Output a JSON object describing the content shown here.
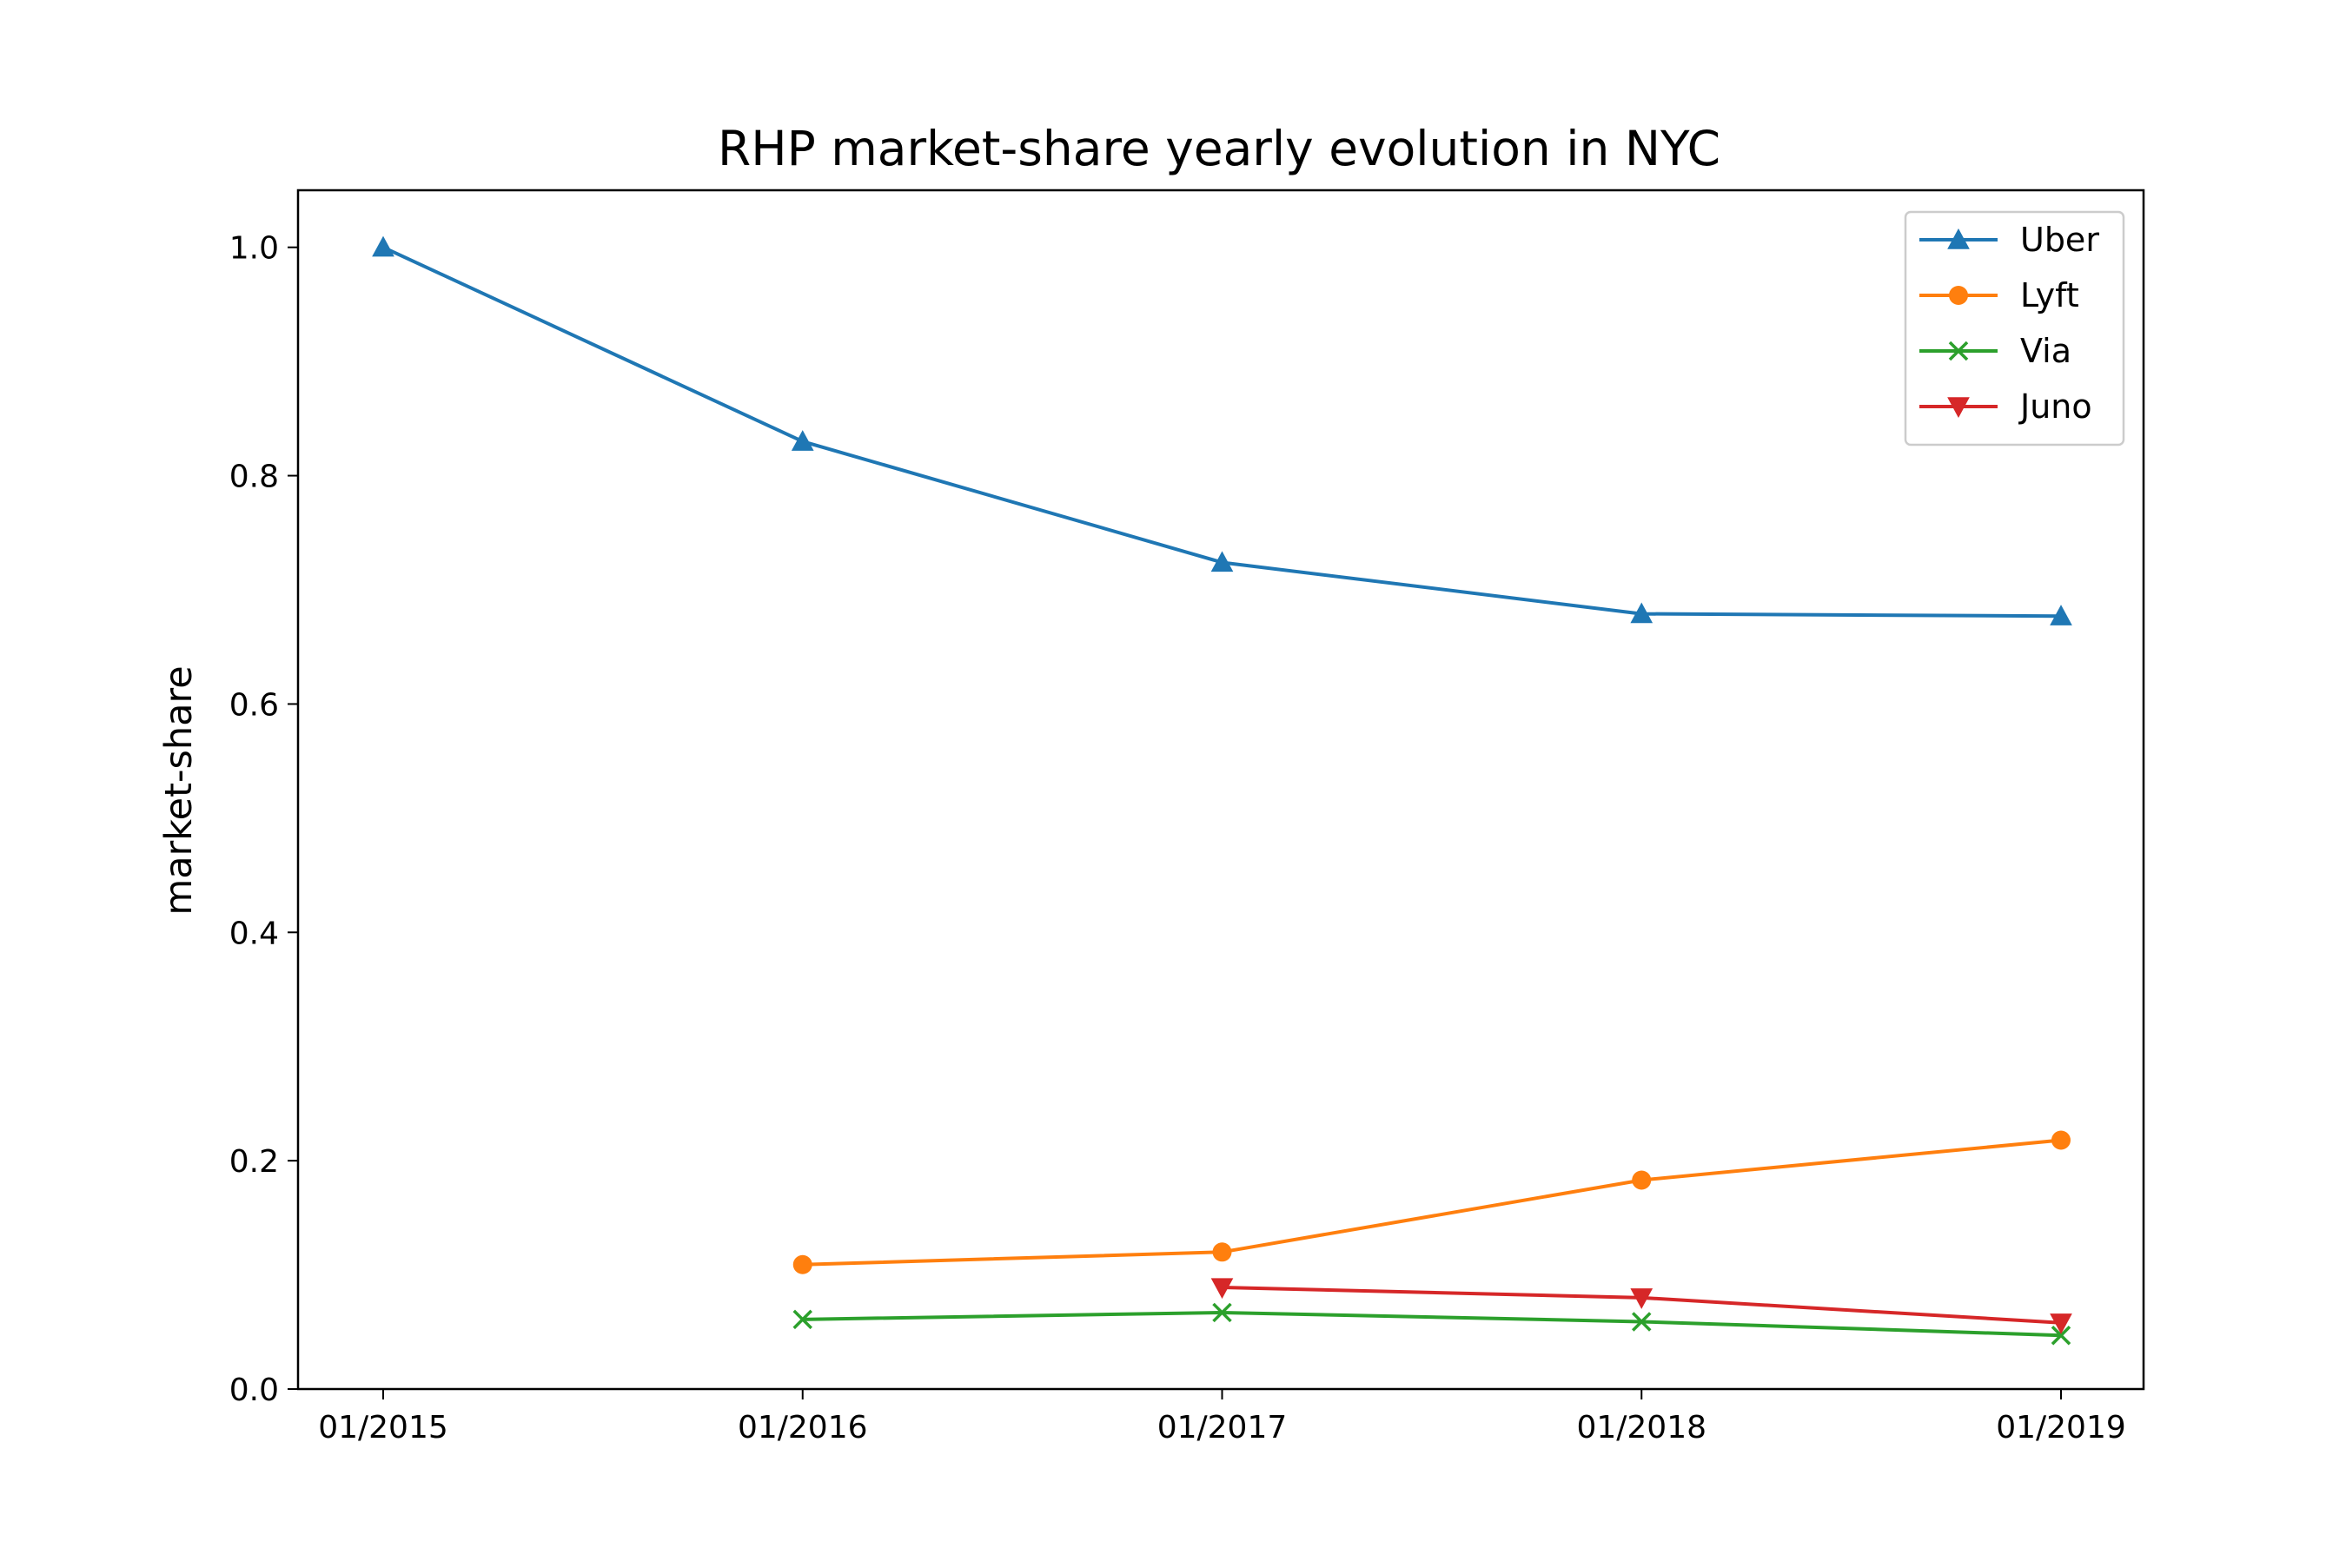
{
  "chart_data": {
    "type": "line",
    "title": "RHP market-share yearly evolution in NYC",
    "xlabel": "",
    "ylabel": "market-share",
    "categories": [
      "01/2015",
      "01/2016",
      "01/2017",
      "01/2018",
      "01/2019"
    ],
    "ylim": [
      0,
      1.05
    ],
    "yticks": [
      "0.0",
      "0.2",
      "0.4",
      "0.6",
      "0.8",
      "1.0"
    ],
    "grid": false,
    "legend_position": "top-right",
    "series": [
      {
        "name": "Uber",
        "color": "#1f77b4",
        "marker": "triangle-up",
        "values": [
          1.0,
          0.83,
          0.724,
          0.679,
          0.677
        ]
      },
      {
        "name": "Lyft",
        "color": "#ff7f0e",
        "marker": "circle",
        "values": [
          null,
          0.109,
          0.12,
          0.183,
          0.218
        ]
      },
      {
        "name": "Via",
        "color": "#2ca02c",
        "marker": "x",
        "values": [
          null,
          0.061,
          0.067,
          0.059,
          0.047
        ]
      },
      {
        "name": "Juno",
        "color": "#d62728",
        "marker": "triangle-down",
        "values": [
          null,
          null,
          0.089,
          0.08,
          0.058
        ]
      }
    ]
  }
}
